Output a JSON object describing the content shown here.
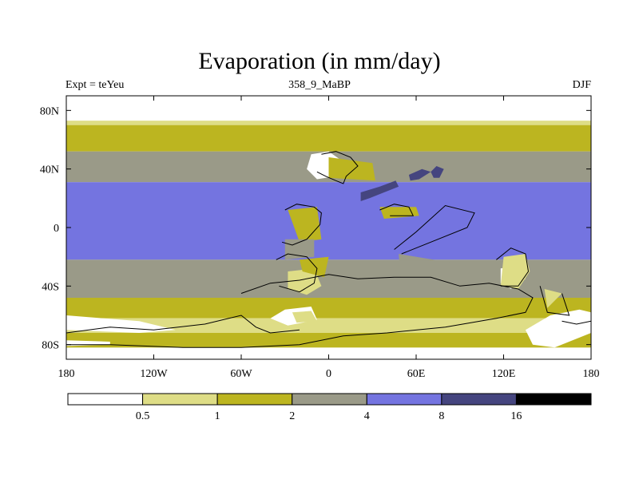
{
  "chart_data": {
    "type": "heatmap",
    "title": "Evaporation (in mm/day)",
    "left_label": "Expt = teYeu",
    "center_label": "358_9_MaBP",
    "right_label": "DJF",
    "x_ticks": [
      {
        "lon": -180,
        "label": "180"
      },
      {
        "lon": -120,
        "label": "120W"
      },
      {
        "lon": -60,
        "label": "60W"
      },
      {
        "lon": 0,
        "label": "0"
      },
      {
        "lon": 60,
        "label": "60E"
      },
      {
        "lon": 120,
        "label": "120E"
      },
      {
        "lon": 180,
        "label": "180"
      }
    ],
    "y_ticks": [
      {
        "lat": 80,
        "label": "80N"
      },
      {
        "lat": 40,
        "label": "40N"
      },
      {
        "lat": 0,
        "label": "0"
      },
      {
        "lat": -40,
        "label": "40S"
      },
      {
        "lat": -80,
        "label": "80S"
      }
    ],
    "x_range": [
      -180,
      180
    ],
    "y_range": [
      -90,
      90
    ],
    "colorbar": {
      "levels": [
        "0.5",
        "1",
        "2",
        "4",
        "8",
        "16"
      ],
      "colors": [
        "#ffffff",
        "#dedd86",
        "#bcb520",
        "#9a9a88",
        "#7474e0",
        "#45457f",
        "#000000"
      ]
    },
    "data_extent_lat": [
      -82,
      73
    ],
    "zonal_bands": [
      {
        "lat_max": 73,
        "lat_min": 70,
        "color_index": 1
      },
      {
        "lat_max": 70,
        "lat_min": 52,
        "color_index": 2
      },
      {
        "lat_max": 52,
        "lat_min": 31,
        "color_index": 3
      },
      {
        "lat_max": 31,
        "lat_min": -22,
        "color_index": 4
      },
      {
        "lat_max": -22,
        "lat_min": -48,
        "color_index": 3
      },
      {
        "lat_max": -48,
        "lat_min": -62,
        "color_index": 2
      },
      {
        "lat_max": -62,
        "lat_min": -72,
        "color_index": 1
      },
      {
        "lat_max": -72,
        "lat_min": -82,
        "color_index": 2
      }
    ],
    "patches": [
      {
        "color_index": 0,
        "points": [
          [
            -180,
            -60
          ],
          [
            -130,
            -64
          ],
          [
            -105,
            -70
          ],
          [
            -130,
            -72
          ],
          [
            -180,
            -70
          ]
        ]
      },
      {
        "color_index": 0,
        "points": [
          [
            -180,
            -77
          ],
          [
            -150,
            -78
          ],
          [
            -150,
            -80
          ],
          [
            -180,
            -81
          ]
        ]
      },
      {
        "color_index": 0,
        "points": [
          [
            -30,
            -56
          ],
          [
            -12,
            -54
          ],
          [
            -8,
            -63
          ],
          [
            -28,
            -67
          ],
          [
            -40,
            -62
          ]
        ]
      },
      {
        "color_index": 0,
        "points": [
          [
            -12,
            50
          ],
          [
            0,
            52
          ],
          [
            10,
            45
          ],
          [
            5,
            35
          ],
          [
            -8,
            33
          ],
          [
            -15,
            40
          ]
        ]
      },
      {
        "color_index": 0,
        "points": [
          [
            118,
            -28
          ],
          [
            130,
            -26
          ],
          [
            135,
            -35
          ],
          [
            125,
            -42
          ],
          [
            118,
            -38
          ]
        ]
      },
      {
        "color_index": 0,
        "points": [
          [
            135,
            -70
          ],
          [
            152,
            -60
          ],
          [
            172,
            -56
          ],
          [
            180,
            -58
          ],
          [
            180,
            -72
          ],
          [
            155,
            -82
          ],
          [
            140,
            -80
          ]
        ]
      },
      {
        "color_index": 1,
        "points": [
          [
            -28,
            -30
          ],
          [
            -10,
            -28
          ],
          [
            -5,
            -40
          ],
          [
            -15,
            -46
          ],
          [
            -28,
            -42
          ]
        ]
      },
      {
        "color_index": 1,
        "points": [
          [
            -25,
            -58
          ],
          [
            -12,
            -57
          ],
          [
            -8,
            -64
          ],
          [
            -22,
            -65
          ]
        ]
      },
      {
        "color_index": 1,
        "points": [
          [
            120,
            -20
          ],
          [
            135,
            -18
          ],
          [
            138,
            -30
          ],
          [
            130,
            -42
          ],
          [
            118,
            -40
          ]
        ]
      },
      {
        "color_index": 1,
        "points": [
          [
            148,
            -42
          ],
          [
            160,
            -45
          ],
          [
            150,
            -55
          ]
        ]
      },
      {
        "color_index": 2,
        "points": [
          [
            -28,
            12
          ],
          [
            -8,
            14
          ],
          [
            -5,
            -8
          ],
          [
            -20,
            -10
          ]
        ]
      },
      {
        "color_index": 2,
        "points": [
          [
            -20,
            -22
          ],
          [
            0,
            -20
          ],
          [
            -3,
            -34
          ],
          [
            -18,
            -30
          ]
        ]
      },
      {
        "color_index": 2,
        "points": [
          [
            35,
            14
          ],
          [
            60,
            14
          ],
          [
            62,
            8
          ],
          [
            38,
            6
          ]
        ]
      },
      {
        "color_index": 2,
        "points": [
          [
            0,
            48
          ],
          [
            30,
            44
          ],
          [
            32,
            32
          ],
          [
            0,
            34
          ]
        ]
      },
      {
        "color_index": 3,
        "points": [
          [
            -30,
            -8
          ],
          [
            -10,
            -8
          ],
          [
            -10,
            -20
          ],
          [
            -30,
            -22
          ]
        ]
      },
      {
        "color_index": 3,
        "points": [
          [
            48,
            -18
          ],
          [
            90,
            -25
          ],
          [
            110,
            -30
          ],
          [
            88,
            -45
          ],
          [
            50,
            -40
          ]
        ]
      },
      {
        "color_index": 5,
        "points": [
          [
            22,
            24
          ],
          [
            35,
            28
          ],
          [
            46,
            32
          ],
          [
            48,
            28
          ],
          [
            38,
            24
          ],
          [
            28,
            20
          ],
          [
            22,
            18
          ]
        ]
      },
      {
        "color_index": 5,
        "points": [
          [
            55,
            36
          ],
          [
            64,
            40
          ],
          [
            70,
            38
          ],
          [
            62,
            33
          ],
          [
            56,
            32
          ]
        ]
      },
      {
        "color_index": 5,
        "points": [
          [
            70,
            38
          ],
          [
            74,
            42
          ],
          [
            79,
            40
          ],
          [
            76,
            34
          ],
          [
            72,
            34
          ]
        ]
      }
    ],
    "coastlines": [
      [
        [
          -5,
          50
        ],
        [
          5,
          52
        ],
        [
          15,
          48
        ],
        [
          20,
          42
        ],
        [
          12,
          35
        ],
        [
          10,
          30
        ],
        [
          5,
          32
        ],
        [
          -2,
          35
        ],
        [
          -8,
          38
        ]
      ],
      [
        [
          -30,
          12
        ],
        [
          -22,
          16
        ],
        [
          -10,
          14
        ],
        [
          -5,
          10
        ],
        [
          -6,
          2
        ],
        [
          -15,
          -8
        ],
        [
          -25,
          -12
        ],
        [
          -32,
          -10
        ]
      ],
      [
        [
          -36,
          -22
        ],
        [
          -28,
          -18
        ],
        [
          -15,
          -20
        ],
        [
          -8,
          -28
        ],
        [
          -10,
          -38
        ],
        [
          -20,
          -44
        ],
        [
          -34,
          -40
        ]
      ],
      [
        [
          -60,
          -45
        ],
        [
          -40,
          -38
        ],
        [
          -20,
          -36
        ],
        [
          0,
          -32
        ],
        [
          20,
          -35
        ],
        [
          45,
          -34
        ],
        [
          70,
          -34
        ],
        [
          90,
          -40
        ],
        [
          110,
          -38
        ],
        [
          130,
          -42
        ],
        [
          140,
          -48
        ],
        [
          135,
          -58
        ],
        [
          115,
          -62
        ],
        [
          80,
          -68
        ],
        [
          40,
          -72
        ],
        [
          10,
          -74
        ],
        [
          -20,
          -80
        ],
        [
          -60,
          -82
        ],
        [
          -100,
          -82
        ],
        [
          -150,
          -80
        ],
        [
          -180,
          -80
        ]
      ],
      [
        [
          50,
          -18
        ],
        [
          70,
          -10
        ],
        [
          95,
          0
        ],
        [
          100,
          10
        ],
        [
          80,
          15
        ],
        [
          60,
          -3
        ],
        [
          45,
          -15
        ]
      ],
      [
        [
          35,
          12
        ],
        [
          45,
          16
        ],
        [
          55,
          14
        ],
        [
          58,
          8
        ],
        [
          42,
          8
        ]
      ],
      [
        [
          115,
          -22
        ],
        [
          125,
          -14
        ],
        [
          135,
          -18
        ],
        [
          137,
          -30
        ],
        [
          130,
          -40
        ],
        [
          118,
          -40
        ]
      ],
      [
        [
          -180,
          -72
        ],
        [
          -150,
          -68
        ],
        [
          -120,
          -70
        ],
        [
          -85,
          -66
        ],
        [
          -60,
          -60
        ],
        [
          -50,
          -68
        ],
        [
          -40,
          -72
        ],
        [
          -20,
          -70
        ]
      ],
      [
        [
          145,
          -40
        ],
        [
          150,
          -58
        ],
        [
          165,
          -60
        ],
        [
          160,
          -45
        ]
      ],
      [
        [
          160,
          -64
        ],
        [
          170,
          -66
        ],
        [
          180,
          -64
        ]
      ]
    ]
  }
}
